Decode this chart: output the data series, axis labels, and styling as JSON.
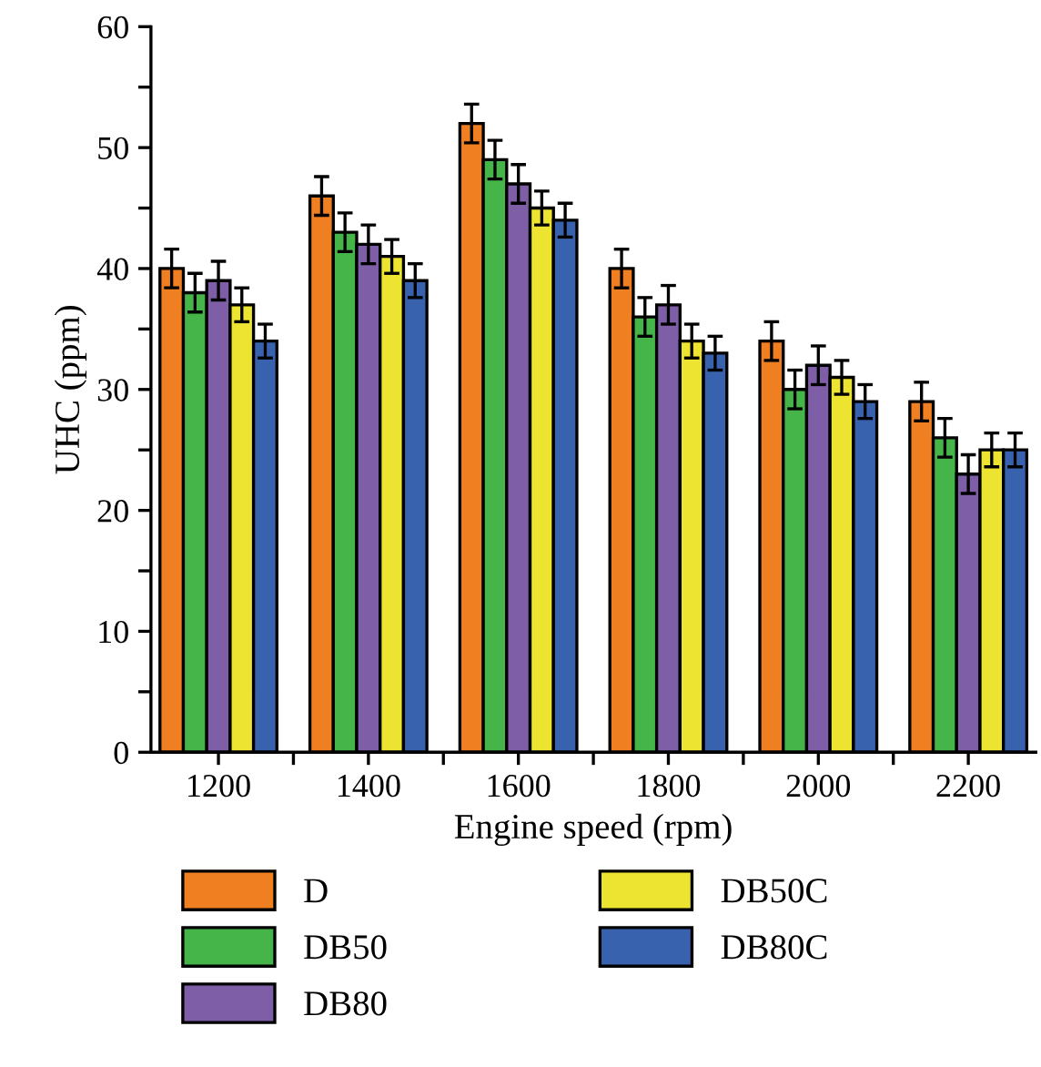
{
  "chart_data": {
    "type": "bar",
    "xlabel": "Engine speed (rpm)",
    "ylabel": "UHC (ppm)",
    "categories": [
      "1200",
      "1400",
      "1600",
      "1800",
      "2000",
      "2200"
    ],
    "series": [
      {
        "name": "D",
        "color": "#f07f22",
        "values": [
          40,
          46,
          52,
          40,
          34,
          29
        ],
        "errors": [
          1.6,
          1.6,
          1.6,
          1.6,
          1.6,
          1.6
        ]
      },
      {
        "name": "DB50",
        "color": "#45b549",
        "values": [
          38,
          43,
          49,
          36,
          30,
          26
        ],
        "errors": [
          1.6,
          1.6,
          1.6,
          1.6,
          1.6,
          1.6
        ]
      },
      {
        "name": "DB80",
        "color": "#7f5ea8",
        "values": [
          39,
          42,
          47,
          37,
          32,
          23
        ],
        "errors": [
          1.6,
          1.6,
          1.6,
          1.6,
          1.6,
          1.6
        ]
      },
      {
        "name": "DB50C",
        "color": "#ece431",
        "values": [
          37,
          41,
          45,
          34,
          31,
          25
        ],
        "errors": [
          1.4,
          1.4,
          1.4,
          1.4,
          1.4,
          1.4
        ]
      },
      {
        "name": "DB80C",
        "color": "#3862ad",
        "values": [
          34,
          39,
          44,
          33,
          29,
          25
        ],
        "errors": [
          1.4,
          1.4,
          1.4,
          1.4,
          1.4,
          1.4
        ]
      }
    ],
    "ylim": [
      0,
      60
    ],
    "yticks": [
      0,
      {
        "value": 5,
        "label": null
      },
      10,
      {
        "value": 15,
        "label": null
      },
      20,
      {
        "value": 25,
        "label": null
      },
      30,
      {
        "value": 35,
        "label": null
      },
      40,
      {
        "value": 45,
        "label": null
      },
      50,
      {
        "value": 55,
        "label": null
      },
      60
    ],
    "legend": "bottom",
    "grid": false
  }
}
